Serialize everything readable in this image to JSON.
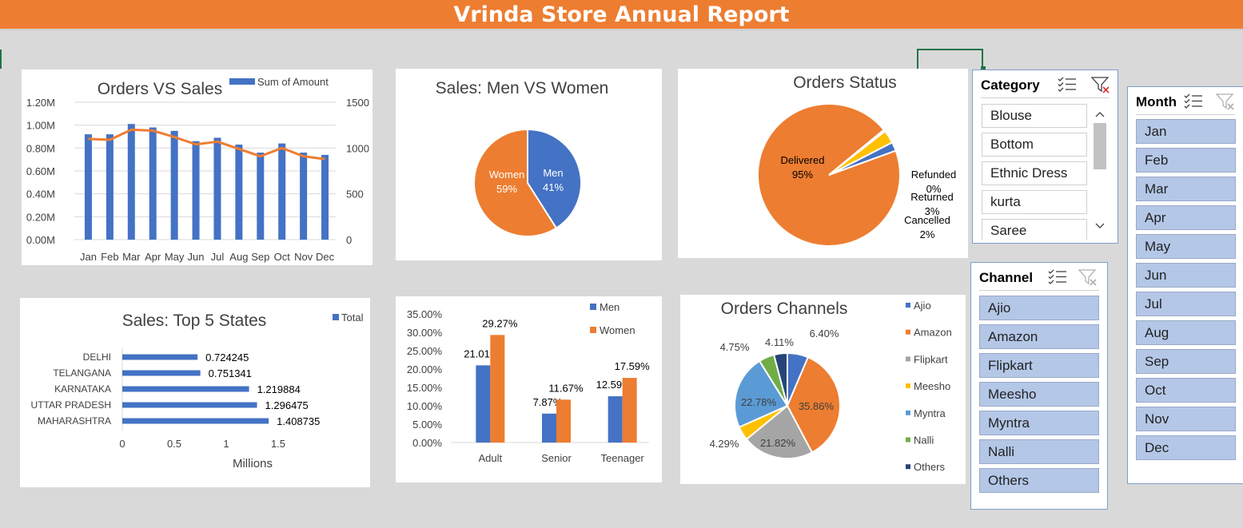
{
  "report_title": "Vrinda Store Annual Report",
  "colors": {
    "blue": "#4472c4",
    "orange": "#ed7d31",
    "gray": "#a5a5a5",
    "yellow": "#ffc000",
    "lightblue": "#5b9bd5",
    "green": "#70ad47",
    "navy": "#264478"
  },
  "icons": {
    "multiselect": "multi-select-icon",
    "clear": "clear-filter-icon"
  },
  "chart_data": [
    {
      "id": "orders_vs_sales",
      "type": "bar",
      "title": "Orders VS Sales",
      "categories": [
        "Jan",
        "Feb",
        "Mar",
        "Apr",
        "May",
        "Jun",
        "Jul",
        "Aug",
        "Sep",
        "Oct",
        "Nov",
        "Dec"
      ],
      "series": [
        {
          "name": "Sum of Amount",
          "kind": "bar",
          "axis": "left",
          "values": [
            0.92,
            0.92,
            1.01,
            0.98,
            0.95,
            0.86,
            0.89,
            0.83,
            0.76,
            0.84,
            0.76,
            0.74
          ]
        },
        {
          "kind": "line",
          "axis": "right",
          "values": [
            1100,
            1090,
            1200,
            1190,
            1120,
            1040,
            1070,
            990,
            910,
            1000,
            910,
            880
          ]
        }
      ],
      "y_left_ticks": [
        "0.00M",
        "0.20M",
        "0.40M",
        "0.60M",
        "0.80M",
        "1.00M",
        "1.20M"
      ],
      "y_left_lim": [
        0,
        1.2
      ],
      "y_right_ticks": [
        "0",
        "500",
        "1000",
        "1500"
      ],
      "y_right_lim": [
        0,
        1500
      ],
      "legend": "top-right",
      "grid": true
    },
    {
      "id": "men_vs_women",
      "type": "pie",
      "title": "Sales: Men VS Women",
      "labels": [
        "Men",
        "Women"
      ],
      "values": [
        41,
        59
      ],
      "value_labels": [
        "41%",
        "59%"
      ]
    },
    {
      "id": "orders_status",
      "type": "pie",
      "title": "Orders Status",
      "labels": [
        "Delivered",
        "Refunded",
        "Returned",
        "Cancelled"
      ],
      "values": [
        95,
        0.4,
        3,
        2
      ],
      "value_labels": [
        "95%",
        "0%",
        "3%",
        "2%"
      ]
    },
    {
      "id": "top5_states",
      "type": "bar",
      "orientation": "horizontal",
      "title": "Sales: Top 5 States",
      "categories": [
        "DELHI",
        "TELANGANA",
        "KARNATAKA",
        "UTTAR PRADESH",
        "MAHARASHTRA"
      ],
      "series": [
        {
          "name": "Total",
          "values": [
            0.724245,
            0.751341,
            1.219884,
            1.296475,
            1.408735
          ]
        }
      ],
      "value_labels": [
        "0.724245",
        "0.751341",
        "1.219884",
        "1.296475",
        "1.408735"
      ],
      "x_ticks": [
        "0",
        "0.5",
        "1",
        "1.5"
      ],
      "xlim": [
        0,
        1.5
      ],
      "xlabel": "Millions",
      "legend": "top-right"
    },
    {
      "id": "age_gender",
      "type": "bar",
      "categories": [
        "Adult",
        "Senior",
        "Teenager"
      ],
      "series": [
        {
          "name": "Men",
          "values": [
            21.01,
            7.87,
            12.59
          ],
          "value_labels": [
            "21.01%",
            "7.87%",
            "12.59%"
          ]
        },
        {
          "name": "Women",
          "values": [
            29.27,
            11.67,
            17.59
          ],
          "value_labels": [
            "29.27%",
            "11.67%",
            "17.59%"
          ]
        }
      ],
      "y_ticks": [
        "0.00%",
        "5.00%",
        "10.00%",
        "15.00%",
        "20.00%",
        "25.00%",
        "30.00%",
        "35.00%"
      ],
      "ylim": [
        0,
        35
      ],
      "legend": "top-right"
    },
    {
      "id": "orders_channels",
      "type": "pie",
      "title": "Orders Channels",
      "labels": [
        "Ajio",
        "Amazon",
        "Flipkart",
        "Meesho",
        "Myntra",
        "Nalli",
        "Others"
      ],
      "values": [
        6.4,
        35.86,
        21.82,
        4.29,
        22.78,
        4.75,
        4.11
      ],
      "value_labels": [
        "6.40%",
        "35.86%",
        "21.82%",
        "4.29%",
        "22.78%",
        "4.75%",
        "4.11%"
      ],
      "legend": "right"
    }
  ],
  "slicers": {
    "category": {
      "title": "Category",
      "items": [
        "Blouse",
        "Bottom",
        "Ethnic Dress",
        "kurta",
        "Saree"
      ]
    },
    "channel": {
      "title": "Channel",
      "items": [
        "Ajio",
        "Amazon",
        "Flipkart",
        "Meesho",
        "Myntra",
        "Nalli",
        "Others"
      ]
    },
    "month": {
      "title": "Month",
      "items": [
        "Jan",
        "Feb",
        "Mar",
        "Apr",
        "May",
        "Jun",
        "Jul",
        "Aug",
        "Sep",
        "Oct",
        "Nov",
        "Dec"
      ]
    }
  }
}
